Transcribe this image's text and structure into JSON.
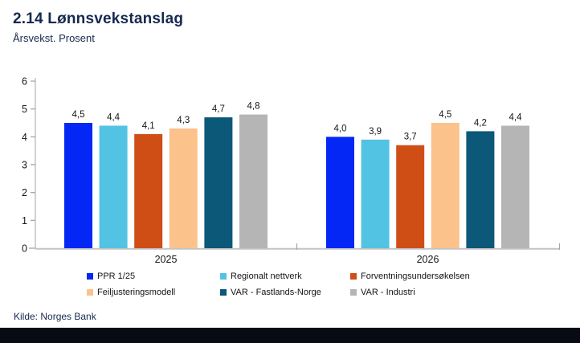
{
  "header": {
    "title": "2.14 Lønnsvekstanslag",
    "subtitle": "Årsvekst. Prosent"
  },
  "source": "Kilde: Norges Bank",
  "colors": {
    "title_navy": "#16294f",
    "footer_bar": "#070b14",
    "axis_line": "#c3c3c3",
    "tick_mark": "#a6a6a6",
    "label_text": "#161616"
  },
  "chart_data": {
    "type": "bar",
    "title": "2.14 Lønnsvekstanslag",
    "subtitle": "Årsvekst. Prosent",
    "categories": [
      "2025",
      "2026"
    ],
    "series": [
      {
        "name": "PPR 1/25",
        "color": "#0527f5",
        "values": [
          4.5,
          4.0
        ]
      },
      {
        "name": "Regionalt nettverk",
        "color": "#52c3e2",
        "values": [
          4.4,
          3.9
        ]
      },
      {
        "name": "Forventningsundersøkelsen",
        "color": "#cf4e16",
        "values": [
          4.1,
          3.7
        ]
      },
      {
        "name": "Feiljusteringsmodell",
        "color": "#fbc28c",
        "values": [
          4.3,
          4.5
        ]
      },
      {
        "name": "VAR - Fastlands-Norge",
        "color": "#0c5878",
        "values": [
          4.7,
          4.2
        ]
      },
      {
        "name": "VAR - Industri",
        "color": "#b5b5b5",
        "values": [
          4.8,
          4.4
        ]
      }
    ],
    "ylim": [
      0,
      6
    ],
    "yticks": [
      0,
      1,
      2,
      3,
      4,
      5,
      6
    ],
    "grid": false,
    "legend_position": "bottom",
    "value_labels": true,
    "decimal_separator": ","
  }
}
